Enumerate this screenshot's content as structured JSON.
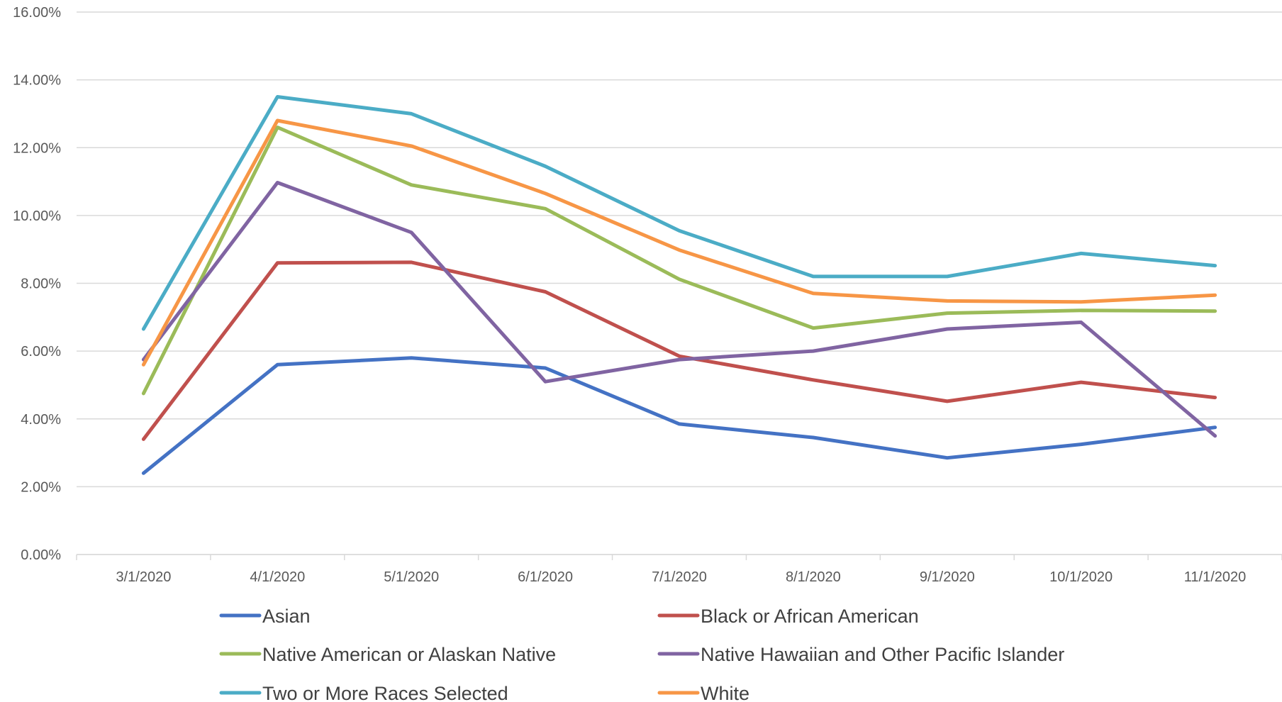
{
  "chart_data": {
    "type": "line",
    "title": "",
    "xlabel": "",
    "ylabel": "",
    "categories": [
      "3/1/2020",
      "4/1/2020",
      "5/1/2020",
      "6/1/2020",
      "7/1/2020",
      "8/1/2020",
      "9/1/2020",
      "10/1/2020",
      "11/1/2020"
    ],
    "ylim": [
      0,
      16
    ],
    "yticks": [
      {
        "value": 0,
        "label": "0.00%"
      },
      {
        "value": 2,
        "label": "2.00%"
      },
      {
        "value": 4,
        "label": "4.00%"
      },
      {
        "value": 6,
        "label": "6.00%"
      },
      {
        "value": 8,
        "label": "8.00%"
      },
      {
        "value": 10,
        "label": "10.00%"
      },
      {
        "value": 12,
        "label": "12.00%"
      },
      {
        "value": 14,
        "label": "14.00%"
      },
      {
        "value": 16,
        "label": "16.00%"
      }
    ],
    "unit": "%",
    "grid": true,
    "legend_position": "bottom",
    "series": [
      {
        "name": "Asian",
        "color": "#4472C4",
        "values": [
          2.4,
          5.6,
          5.8,
          5.5,
          3.85,
          3.45,
          2.85,
          3.25,
          3.75
        ]
      },
      {
        "name": "Black or African American",
        "color": "#C0504D",
        "values": [
          3.4,
          8.6,
          8.62,
          7.75,
          5.85,
          5.15,
          4.52,
          5.08,
          4.63
        ]
      },
      {
        "name": "Native American or Alaskan Native",
        "color": "#9BBB59",
        "values": [
          4.75,
          12.6,
          10.9,
          10.2,
          8.12,
          6.68,
          7.12,
          7.2,
          7.18
        ]
      },
      {
        "name": "Native Hawaiian and Other Pacific Islander",
        "color": "#8064A2",
        "values": [
          5.75,
          10.97,
          9.5,
          5.1,
          5.75,
          6.0,
          6.65,
          6.85,
          3.5
        ]
      },
      {
        "name": "Two or More Races Selected",
        "color": "#4BACC6",
        "values": [
          6.65,
          13.5,
          13.0,
          11.45,
          9.55,
          8.2,
          8.2,
          8.88,
          8.52
        ]
      },
      {
        "name": "White",
        "color": "#F79646",
        "values": [
          5.6,
          12.8,
          12.05,
          10.65,
          8.98,
          7.7,
          7.48,
          7.45,
          7.65
        ]
      }
    ]
  }
}
